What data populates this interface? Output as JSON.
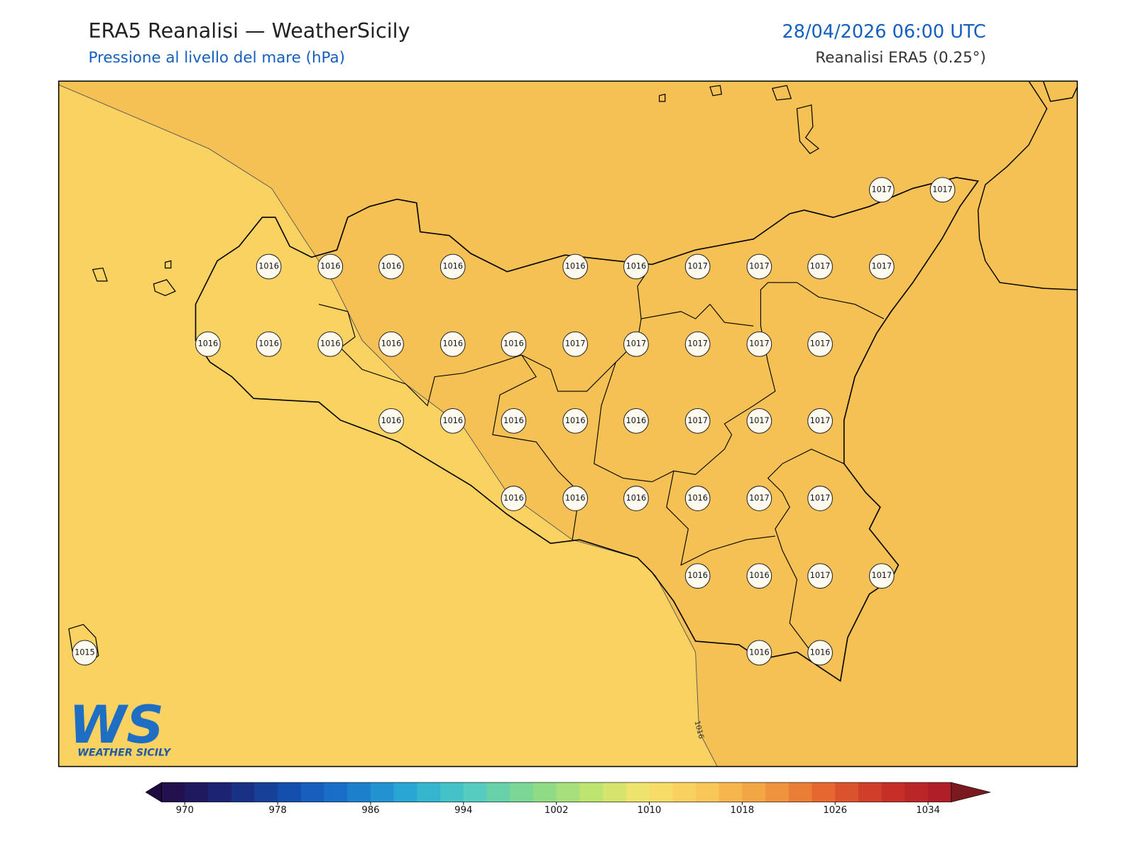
{
  "header": {
    "title": "ERA5 Reanalisi — WeatherSicily",
    "subtitle": "Pressione al livello del mare (hPa)",
    "datetime": "28/04/2026 06:00 UTC",
    "source": "Reanalisi ERA5 (0.25°)"
  },
  "map": {
    "contour_label": "1016",
    "stations": [
      1017,
      1017,
      1016,
      1016,
      1016,
      1016,
      1016,
      1016,
      1017,
      1017,
      1017,
      1017,
      1016,
      1016,
      1016,
      1016,
      1016,
      1016,
      1017,
      1017,
      1017,
      1017,
      1017,
      1016,
      1016,
      1016,
      1016,
      1016,
      1017,
      1017,
      1017,
      1016,
      1016,
      1016,
      1016,
      1017,
      1017,
      1016,
      1016,
      1017,
      1017,
      1016,
      1016,
      1015
    ]
  },
  "colorbar": {
    "lim": [
      968,
      1036
    ],
    "ticks": [
      970,
      978,
      986,
      994,
      1002,
      1010,
      1018,
      1026,
      1034
    ]
  },
  "logo": {
    "mark": "WS",
    "text": "WEATHER SICILY"
  }
}
